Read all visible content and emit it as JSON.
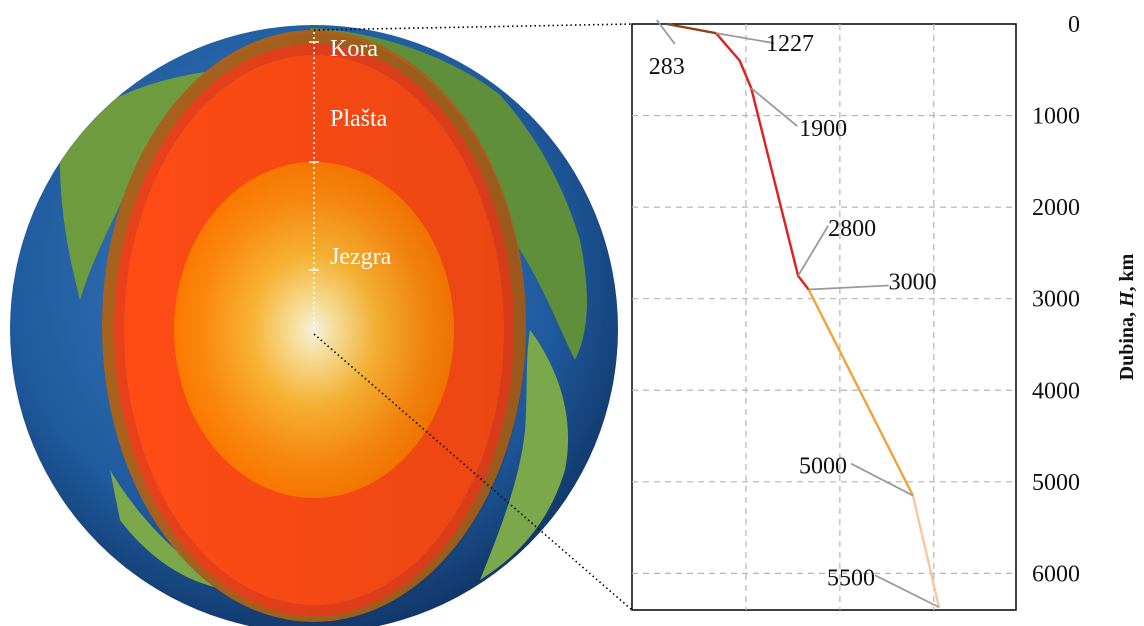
{
  "layers": {
    "crust": "Kora",
    "mantle": "Plašta",
    "core": "Jezgra"
  },
  "chart_data": {
    "type": "line",
    "ylabel_prefix": "Dubina, ",
    "ylabel_var": "H",
    "ylabel_suffix": ", km",
    "y_axis": {
      "range": [
        0,
        6400
      ],
      "ticks": [
        0,
        1000,
        2000,
        3000,
        4000,
        5000,
        6000
      ],
      "inverted": true,
      "position": "right"
    },
    "x_axis": {
      "range": [
        0,
        6400
      ],
      "gridlines": [
        1800,
        3600,
        5400
      ],
      "tick_labels_shown": false
    },
    "grid": true,
    "series": [
      {
        "color": "#8B4513",
        "points": [
          [
            283,
            0
          ],
          [
            1227,
            100
          ]
        ]
      },
      {
        "color": "#E0201C",
        "points": [
          [
            1227,
            100
          ],
          [
            1680,
            400
          ],
          [
            1900,
            700
          ],
          [
            2800,
            2750
          ],
          [
            3000,
            2900
          ]
        ]
      },
      {
        "color": "#F2A23A",
        "points": [
          [
            3000,
            2900
          ],
          [
            5000,
            5150
          ]
        ]
      },
      {
        "color": "#F7C8A0",
        "points": [
          [
            5000,
            5150
          ],
          [
            5500,
            6370
          ]
        ]
      }
    ],
    "annotations": [
      {
        "text": "283",
        "x": 283,
        "y": 0
      },
      {
        "text": "1227",
        "x": 1227,
        "y": 100
      },
      {
        "text": "1900",
        "x": 1900,
        "y": 700
      },
      {
        "text": "2800",
        "x": 2800,
        "y": 2750
      },
      {
        "text": "3000",
        "x": 3000,
        "y": 2900
      },
      {
        "text": "5000",
        "x": 5000,
        "y": 5150
      },
      {
        "text": "5500",
        "x": 5500,
        "y": 6370
      }
    ]
  }
}
